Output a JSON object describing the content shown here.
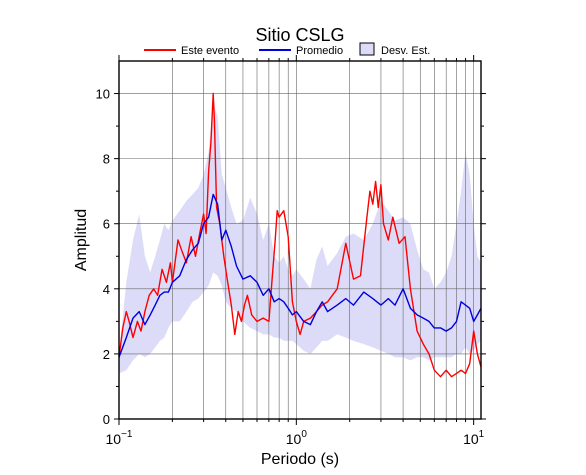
{
  "chart_data": {
    "type": "line",
    "title": "Sitio CSLG",
    "xlabel": "Periodo (s)",
    "ylabel": "Amplitud",
    "xscale": "log",
    "xlim": [
      0.1,
      11
    ],
    "ylim": [
      0,
      11
    ],
    "yticks": [
      0,
      2,
      4,
      6,
      8,
      10
    ],
    "xticks": [
      {
        "base": "10",
        "exp": "−1"
      },
      {
        "base": "10",
        "exp": "0"
      },
      {
        "base": "10",
        "exp": "1"
      }
    ],
    "grid": true,
    "legend_position": "top",
    "legend": [
      {
        "label": "Este evento",
        "kind": "line",
        "color": "#ff0000"
      },
      {
        "label": "Promedio",
        "kind": "line",
        "color": "#0000dd"
      },
      {
        "label": "Desv. Est.",
        "kind": "patch",
        "color": "#dcdcf8"
      }
    ],
    "series": [
      {
        "name": "Este evento",
        "color": "#ff0000",
        "x": [
          0.1,
          0.105,
          0.11,
          0.114,
          0.12,
          0.127,
          0.133,
          0.14,
          0.148,
          0.157,
          0.165,
          0.175,
          0.185,
          0.195,
          0.2,
          0.215,
          0.225,
          0.24,
          0.255,
          0.27,
          0.285,
          0.3,
          0.31,
          0.32,
          0.33,
          0.34,
          0.345,
          0.355,
          0.37,
          0.39,
          0.41,
          0.43,
          0.45,
          0.47,
          0.49,
          0.51,
          0.53,
          0.56,
          0.6,
          0.65,
          0.7,
          0.73,
          0.76,
          0.78,
          0.8,
          0.85,
          0.9,
          0.95,
          1.0,
          1.05,
          1.1,
          1.2,
          1.3,
          1.4,
          1.5,
          1.7,
          1.9,
          2.1,
          2.3,
          2.5,
          2.6,
          2.7,
          2.8,
          2.9,
          3.0,
          3.1,
          3.3,
          3.5,
          3.8,
          4.1,
          4.4,
          4.8,
          5.2,
          5.6,
          6.0,
          6.5,
          7.0,
          7.5,
          8.0,
          8.5,
          9.0,
          9.5,
          10.0,
          10.5,
          11.0
        ],
        "y": [
          1.9,
          2.8,
          3.3,
          3.0,
          2.5,
          3.0,
          2.7,
          3.3,
          3.8,
          4.0,
          3.8,
          4.6,
          4.2,
          4.8,
          4.2,
          5.5,
          5.2,
          4.8,
          5.6,
          5.0,
          5.7,
          6.3,
          5.7,
          7.6,
          8.5,
          10.0,
          9.2,
          6.5,
          6.0,
          5.0,
          4.2,
          3.5,
          2.6,
          3.3,
          3.0,
          3.5,
          3.8,
          3.2,
          3.0,
          3.1,
          3.0,
          4.3,
          5.5,
          6.4,
          6.2,
          6.4,
          5.6,
          3.6,
          3.0,
          2.6,
          3.0,
          3.1,
          3.3,
          3.5,
          3.6,
          4.0,
          5.4,
          4.3,
          4.4,
          6.2,
          7.0,
          6.6,
          7.3,
          6.5,
          7.2,
          6.0,
          5.5,
          6.2,
          5.4,
          5.6,
          4.0,
          2.7,
          2.3,
          2.0,
          1.5,
          1.3,
          1.5,
          1.3,
          1.4,
          1.5,
          1.4,
          1.7,
          2.7,
          2.0,
          1.6
        ]
      },
      {
        "name": "Promedio",
        "color": "#0000dd",
        "x": [
          0.1,
          0.11,
          0.12,
          0.13,
          0.14,
          0.15,
          0.16,
          0.17,
          0.18,
          0.19,
          0.2,
          0.22,
          0.24,
          0.26,
          0.28,
          0.3,
          0.32,
          0.34,
          0.36,
          0.38,
          0.4,
          0.43,
          0.46,
          0.5,
          0.55,
          0.6,
          0.65,
          0.7,
          0.75,
          0.8,
          0.85,
          0.9,
          0.95,
          1.0,
          1.1,
          1.2,
          1.3,
          1.4,
          1.5,
          1.7,
          1.9,
          2.1,
          2.4,
          2.7,
          3.0,
          3.3,
          3.6,
          4.0,
          4.4,
          4.8,
          5.2,
          5.6,
          6.0,
          6.5,
          7.0,
          7.5,
          8.0,
          8.5,
          9.0,
          9.5,
          10.0,
          10.5,
          11.0
        ],
        "y": [
          1.9,
          2.5,
          3.1,
          3.3,
          2.9,
          3.2,
          3.5,
          3.8,
          3.9,
          3.9,
          4.2,
          4.4,
          4.9,
          5.2,
          5.4,
          6.0,
          6.2,
          6.9,
          6.6,
          5.5,
          5.8,
          5.3,
          4.7,
          4.3,
          4.4,
          4.2,
          3.8,
          4.0,
          3.6,
          3.7,
          3.6,
          3.4,
          3.2,
          3.3,
          3.0,
          2.9,
          3.3,
          3.6,
          3.3,
          3.5,
          3.7,
          3.5,
          3.9,
          3.7,
          3.5,
          3.7,
          3.5,
          4.0,
          3.4,
          3.2,
          3.1,
          3.0,
          2.8,
          2.8,
          2.7,
          2.8,
          3.0,
          3.6,
          3.5,
          3.4,
          3.0,
          3.2,
          3.4
        ]
      }
    ],
    "band": {
      "name": "Desv. Est.",
      "color": "#dcdcf8",
      "x": [
        0.1,
        0.11,
        0.12,
        0.13,
        0.14,
        0.15,
        0.16,
        0.17,
        0.18,
        0.19,
        0.2,
        0.22,
        0.24,
        0.26,
        0.28,
        0.3,
        0.32,
        0.34,
        0.36,
        0.38,
        0.4,
        0.43,
        0.46,
        0.5,
        0.55,
        0.6,
        0.65,
        0.7,
        0.75,
        0.8,
        0.85,
        0.9,
        0.95,
        1.0,
        1.1,
        1.2,
        1.3,
        1.4,
        1.5,
        1.7,
        1.9,
        2.1,
        2.4,
        2.7,
        3.0,
        3.3,
        3.6,
        4.0,
        4.4,
        4.8,
        5.2,
        5.6,
        6.0,
        6.5,
        7.0,
        7.5,
        8.0,
        8.5,
        9.0,
        9.5,
        10.0,
        10.5,
        11.0
      ],
      "upper": [
        2.0,
        4.2,
        5.5,
        6.3,
        5.0,
        4.5,
        5.0,
        5.5,
        6.0,
        5.8,
        6.1,
        6.4,
        6.7,
        6.9,
        7.1,
        7.5,
        8.2,
        9.7,
        9.3,
        7.5,
        7.1,
        6.5,
        6.0,
        6.1,
        6.8,
        6.3,
        5.5,
        6.0,
        5.0,
        4.8,
        5.0,
        4.6,
        4.4,
        4.6,
        4.3,
        4.0,
        4.9,
        5.3,
        4.7,
        5.1,
        5.6,
        5.7,
        5.5,
        6.0,
        6.7,
        6.4,
        6.1,
        6.2,
        6.0,
        5.2,
        4.6,
        4.5,
        4.0,
        4.2,
        4.5,
        5.0,
        6.0,
        7.0,
        8.2,
        7.5,
        6.0,
        5.0,
        4.8
      ],
      "lower": [
        1.4,
        1.5,
        1.8,
        2.0,
        1.9,
        2.0,
        2.2,
        2.4,
        2.5,
        2.8,
        3.0,
        3.0,
        3.3,
        3.6,
        3.7,
        3.9,
        4.1,
        4.5,
        4.4,
        4.1,
        3.6,
        3.4,
        3.3,
        3.0,
        2.8,
        2.7,
        2.6,
        2.6,
        2.5,
        2.5,
        2.4,
        2.4,
        2.4,
        2.3,
        2.1,
        2.0,
        2.2,
        2.4,
        2.4,
        2.6,
        2.5,
        2.4,
        2.3,
        2.2,
        2.1,
        2.0,
        1.9,
        1.9,
        1.8,
        1.9,
        1.9,
        1.8,
        1.9,
        1.9,
        1.9,
        1.9,
        2.0,
        2.0,
        2.2,
        2.0,
        2.1,
        2.3,
        2.4
      ]
    }
  }
}
